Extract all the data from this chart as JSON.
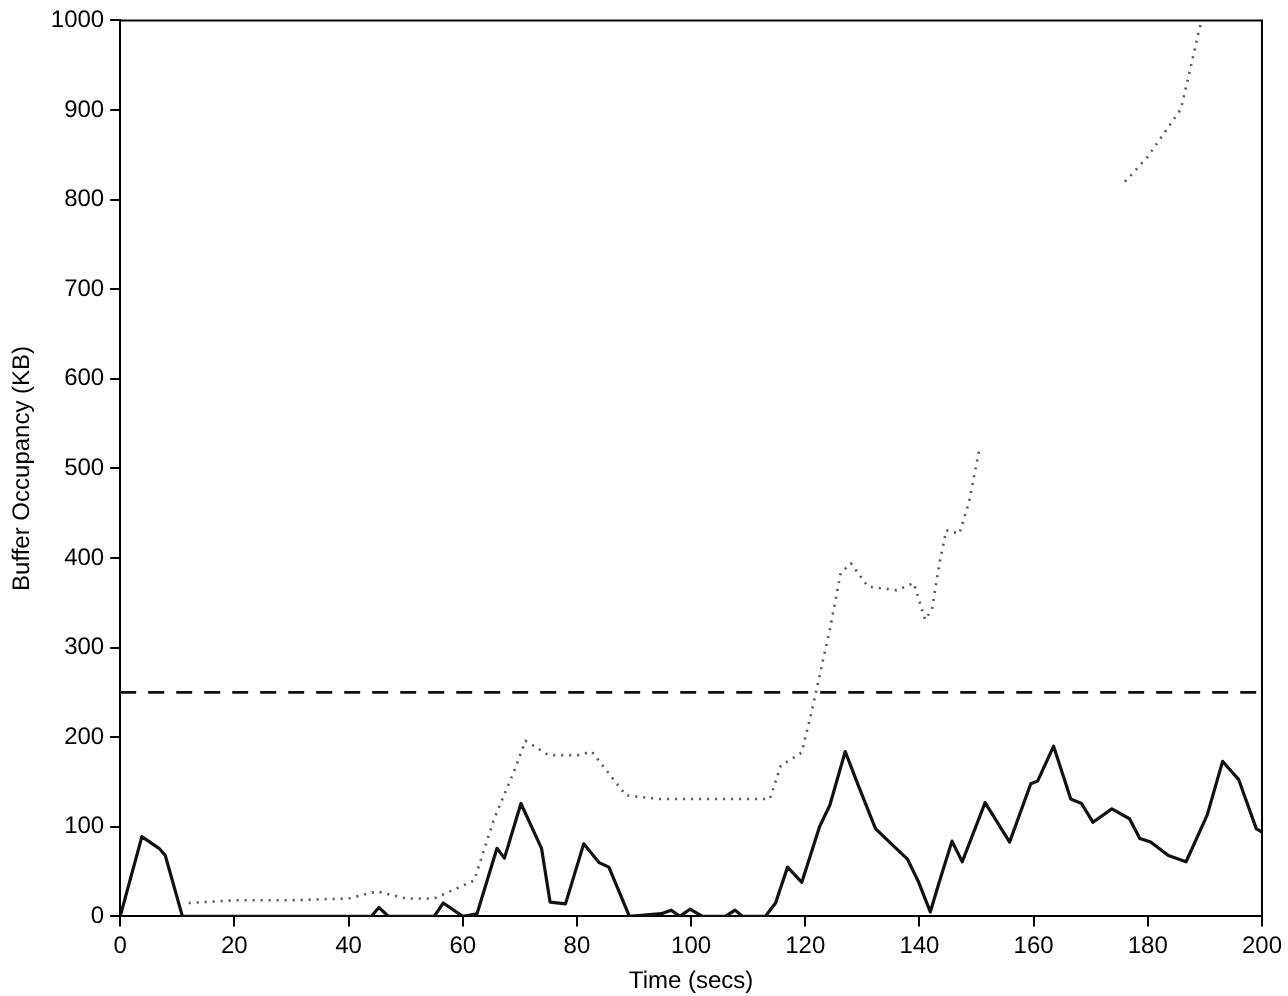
{
  "chart_data": {
    "type": "line",
    "xlabel": "Time (secs)",
    "ylabel": "Buffer Occupancy (KB)",
    "xlim": [
      0,
      200
    ],
    "ylim": [
      0,
      1000
    ],
    "xticks": [
      0,
      20,
      40,
      60,
      80,
      100,
      120,
      140,
      160,
      180,
      200
    ],
    "yticks": [
      0,
      100,
      200,
      300,
      400,
      500,
      600,
      700,
      800,
      900,
      1000
    ],
    "grid": false,
    "legend": false,
    "marker": "none",
    "series": [
      {
        "color": "#111111",
        "line_style": "solid",
        "x": [
          0,
          3.8,
          6.8,
          7.9,
          10.9,
          44,
          45.3,
          47,
          55,
          56.6,
          60,
          62.5,
          66,
          67.3,
          70.2,
          73.8,
          75.3,
          78,
          81.2,
          83.9,
          85.6,
          89.2,
          94.8,
          96.5,
          98,
          99.8,
          102,
          106,
          107.7,
          109,
          113,
          114.8,
          116.9,
          119.4,
          122.5,
          124.3,
          127,
          129.3,
          132.3,
          135.4,
          137.9,
          139.8,
          141.9,
          143.5,
          145.7,
          147.5,
          151.5,
          155.8,
          159.5,
          160.7,
          163.5,
          166.5,
          168.4,
          170.4,
          173.7,
          176.8,
          178.6,
          180.5,
          183.6,
          186.7,
          190.4,
          193.1,
          195.9,
          199,
          200
        ],
        "values": [
          0,
          89,
          76,
          68,
          0,
          0,
          10,
          0,
          0,
          15,
          0,
          3,
          76,
          65,
          126,
          76,
          16,
          14,
          81,
          60,
          55,
          0,
          3,
          7,
          0,
          8,
          0,
          0,
          7,
          0,
          0,
          15,
          55,
          38,
          100,
          124,
          184,
          146,
          98,
          79,
          64,
          39,
          5,
          39,
          84,
          61,
          127,
          83,
          148,
          151,
          190,
          131,
          126,
          105,
          120,
          109,
          87,
          83,
          68,
          61,
          113,
          173,
          153,
          98,
          94
        ]
      },
      {
        "color": "#555555",
        "line_style": "dotted",
        "x": [
          12,
          20,
          30,
          40,
          45,
          50,
          55,
          62,
          65.5,
          69,
          71,
          75,
          80.3,
          82.6,
          88.6,
          94.5,
          100,
          104,
          110,
          113.8,
          115.7,
          119.4,
          121.2,
          124.3,
          126.2,
          128,
          131,
          136,
          139,
          141,
          142.2,
          143.5,
          144.7,
          147,
          148.7,
          150.6,
          163,
          176,
          180,
          185.8,
          187.7,
          189,
          189.5
        ],
        "values": [
          15,
          18,
          18,
          20,
          28,
          20,
          20,
          40,
          109,
          162,
          196,
          180,
          180,
          184,
          135,
          131,
          131,
          131,
          131,
          131,
          168,
          183,
          231,
          320,
          383,
          394,
          368,
          364,
          372,
          331,
          343,
          394,
          431,
          427,
          463,
          525,
          null,
          820,
          848,
          901,
          953,
          990,
          1000
        ]
      }
    ],
    "ref_lines": [
      {
        "axis": "y",
        "value": 250,
        "color": "#111111",
        "line_style": "dashed"
      }
    ]
  }
}
